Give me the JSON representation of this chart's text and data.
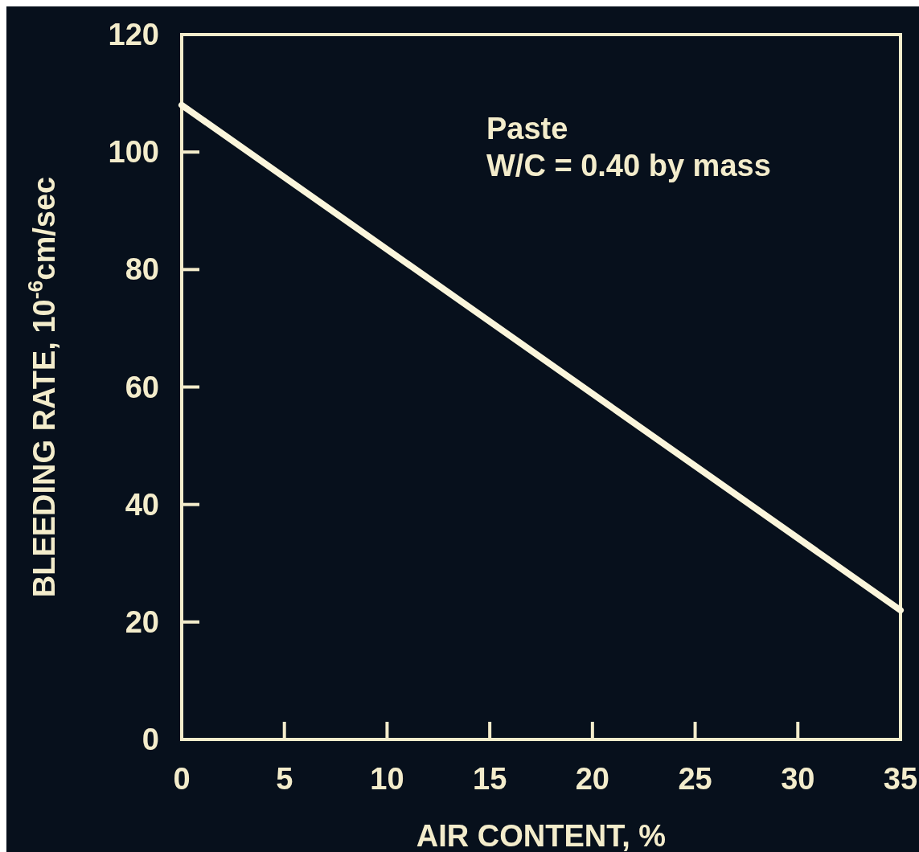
{
  "chart_data": {
    "type": "line",
    "xlabel": "AIR CONTENT, %",
    "ylabel": "BLEEDING RATE, 10$^{-6}$cm/sec",
    "annotations": [
      "Paste",
      "W/C = 0.40 by mass"
    ],
    "x": [
      0,
      35
    ],
    "series": [
      {
        "color": "#fbf6dc",
        "values": [
          108,
          22
        ]
      }
    ],
    "xlim": [
      0,
      35
    ],
    "xticks": [
      0,
      5,
      10,
      15,
      20,
      25,
      30,
      35
    ],
    "ylim": [
      0,
      120
    ],
    "yticks": [
      0,
      20,
      40,
      60,
      80,
      100,
      120
    ],
    "marker": "none",
    "line_style": "solid"
  }
}
